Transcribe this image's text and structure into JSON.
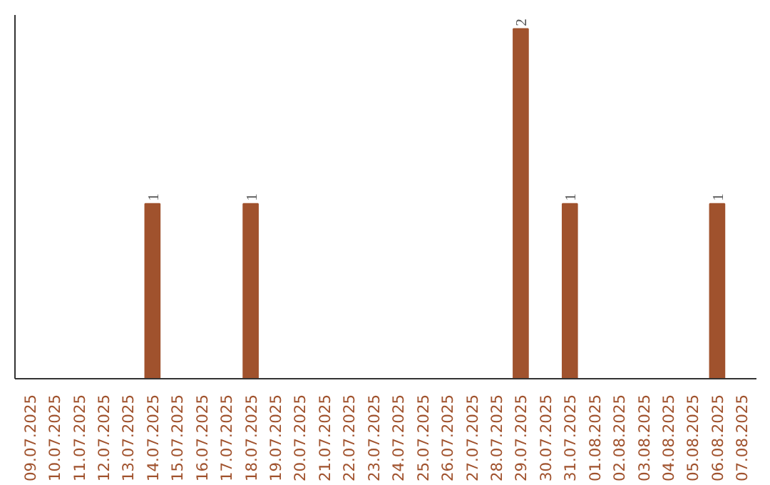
{
  "chart_data": {
    "type": "bar",
    "categories": [
      "09.07.2025",
      "10.07.2025",
      "11.07.2025",
      "12.07.2025",
      "13.07.2025",
      "14.07.2025",
      "15.07.2025",
      "16.07.2025",
      "17.07.2025",
      "18.07.2025",
      "19.07.2025",
      "20.07.2025",
      "21.07.2025",
      "22.07.2025",
      "23.07.2025",
      "24.07.2025",
      "25.07.2025",
      "26.07.2025",
      "27.07.2025",
      "28.07.2025",
      "29.07.2025",
      "30.07.2025",
      "31.07.2025",
      "01.08.2025",
      "02.08.2025",
      "03.08.2025",
      "04.08.2025",
      "05.08.2025",
      "06.08.2025",
      "07.08.2025"
    ],
    "values": [
      0,
      0,
      0,
      0,
      0,
      1,
      0,
      0,
      0,
      1,
      0,
      0,
      0,
      0,
      0,
      0,
      0,
      0,
      0,
      0,
      2,
      0,
      1,
      0,
      0,
      0,
      0,
      0,
      1,
      0
    ],
    "value_labels": [
      null,
      null,
      null,
      null,
      null,
      "1",
      null,
      null,
      null,
      "1",
      null,
      null,
      null,
      null,
      null,
      null,
      null,
      null,
      null,
      null,
      "2",
      null,
      "1",
      null,
      null,
      null,
      null,
      null,
      "1",
      null
    ],
    "color": "#a0522d",
    "tick_labels": "x",
    "grid": false
  }
}
